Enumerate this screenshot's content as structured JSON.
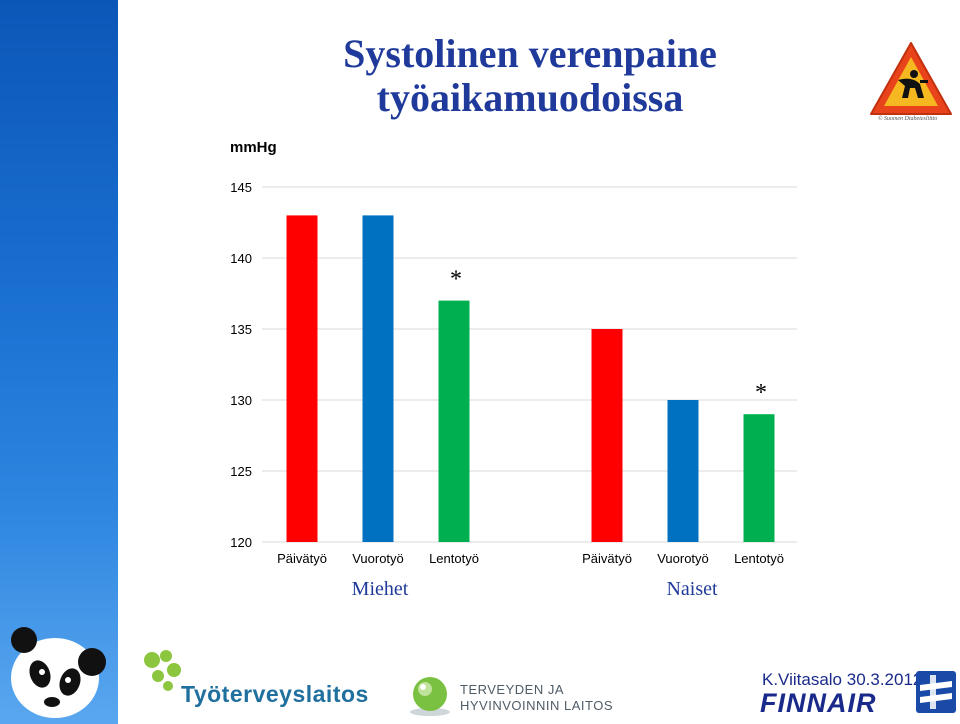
{
  "slide": {
    "title_line1": "Systolinen verenpaine",
    "title_line2": "työaikamuodoissa",
    "unit_label": "mmHg",
    "warning_sign_caption": "© Suomen Diabetesliitto",
    "credit": "K.Viitasalo 30.3.2012",
    "logos": {
      "tyoterveyslaitos": "Työterveyslaitos",
      "thl_line1": "TERVEYDEN JA",
      "thl_line2": "HYVINVOINNIN LAITOS",
      "finnair": "FINNAIR"
    }
  },
  "chart_data": {
    "type": "bar",
    "ylabel": "mmHg",
    "ylim": [
      120,
      145
    ],
    "yticks": [
      120,
      125,
      130,
      135,
      140,
      145
    ],
    "grid": true,
    "groups": [
      {
        "label": "Miehet",
        "bars": [
          {
            "category": "Päivätyö",
            "value": 143,
            "color": "#ff0000"
          },
          {
            "category": "Vuorotyö",
            "value": 143,
            "color": "#0070c0"
          },
          {
            "category": "Lentotyö",
            "value": 137,
            "color": "#00b050",
            "annotation": "*"
          }
        ]
      },
      {
        "label": "Naiset",
        "bars": [
          {
            "category": "Päivätyö",
            "value": 135,
            "color": "#ff0000"
          },
          {
            "category": "Vuorotyö",
            "value": 130,
            "color": "#0070c0"
          },
          {
            "category": "Lentotyö",
            "value": 129,
            "color": "#00b050",
            "annotation": "*"
          }
        ]
      }
    ]
  }
}
